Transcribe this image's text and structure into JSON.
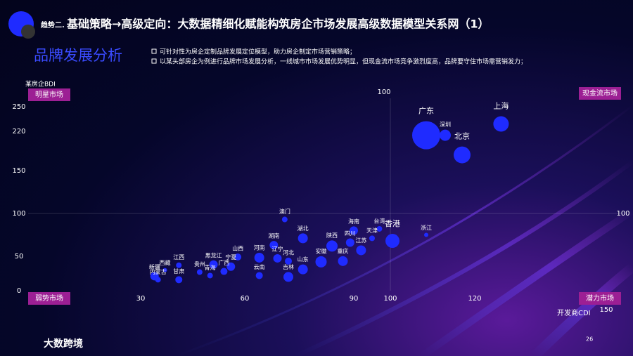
{
  "header": {
    "tag": "趋势二.",
    "title": "基础策略→高级定向：大数据精细化赋能构筑房企市场发展高级数据模型关系网（1）",
    "subtitle": "品牌发展分析",
    "bullets": [
      "可针对性为房企定制品牌发展定位模型，助力房企制定市场营销策略；",
      "以某头部房企为例进行品牌市场发展分析，一线城市市场发展优势明显，但现金流市场竞争激烈度高，品牌要守住市场需营销发力；"
    ]
  },
  "footer": {
    "logo": "大数跨境",
    "page": "26"
  },
  "chart_data": {
    "type": "bubble",
    "x_label": "开发商CDI",
    "y_label": "某房企BDI",
    "xlim": [
      0,
      155
    ],
    "xticks": [
      30,
      60,
      90,
      100,
      120,
      150
    ],
    "ylim": [
      0,
      260
    ],
    "yticks": [
      0,
      50,
      100,
      150,
      220,
      250
    ],
    "quadrant": {
      "x": 100,
      "y": 100,
      "labels": [
        "明星市场",
        "现金流市场",
        "弱势市场",
        "潜力市场"
      ]
    },
    "color": "#1f2bff",
    "categories": [
      "广东",
      "深圳",
      "上海",
      "北京",
      "香港",
      "浙江",
      "台湾",
      "海南",
      "四川",
      "天津",
      "江苏",
      "澳门",
      "湖北",
      "湖南",
      "河南",
      "山西",
      "辽宁",
      "陕西",
      "河北",
      "宁夏",
      "黑龙江",
      "江西",
      "贵州",
      "西藏",
      "新疆",
      "青海",
      "广西",
      "云南",
      "吉林",
      "山东",
      "安徽",
      "重庆",
      "内蒙古",
      "甘肃"
    ],
    "x": [
      108.5,
      113,
      126,
      117,
      100.5,
      108.5,
      97,
      90,
      89,
      95,
      92,
      71,
      76,
      68,
      64,
      58,
      69,
      84,
      72,
      56,
      51,
      41,
      47,
      37,
      34,
      50,
      54,
      64,
      72,
      76,
      81,
      87,
      35,
      41
    ],
    "values": [
      213,
      213,
      229,
      178,
      68,
      75,
      82,
      80,
      66,
      71,
      57,
      93,
      71,
      63,
      48,
      49,
      47,
      62,
      43,
      35,
      38,
      37,
      27,
      30,
      21,
      22,
      28,
      22,
      20,
      31,
      42,
      43,
      16,
      16
    ],
    "sizes": [
      20,
      8,
      11,
      12,
      10,
      3,
      4,
      6,
      6,
      4,
      7,
      4,
      7,
      6,
      7,
      5,
      6,
      8,
      5,
      6,
      6,
      4,
      4,
      3,
      6,
      4,
      5,
      5,
      7,
      7,
      8,
      7,
      4,
      5
    ]
  }
}
